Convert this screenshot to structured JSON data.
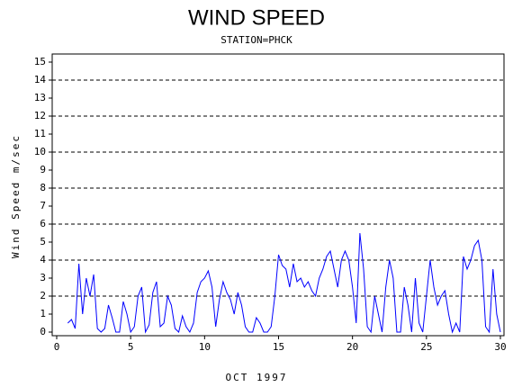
{
  "chart_data": {
    "type": "line",
    "title": "WIND SPEED",
    "subtitle": "STATION=PHCK",
    "x_label": "OCT 1997",
    "y_label": "Wind Speed m/sec",
    "xlim": [
      0,
      30
    ],
    "xticks": [
      0,
      5,
      10,
      15,
      20,
      25,
      30
    ],
    "ylim": [
      0,
      15
    ],
    "yticks": [
      0,
      1,
      2,
      3,
      4,
      5,
      6,
      7,
      8,
      9,
      10,
      11,
      12,
      13,
      14,
      15
    ],
    "grid_yticks": [
      2,
      4,
      6,
      8,
      10,
      12,
      14
    ],
    "x": [
      0.75,
      1,
      1.25,
      1.5,
      1.75,
      2,
      2.25,
      2.5,
      2.75,
      3,
      3.25,
      3.5,
      3.75,
      4,
      4.25,
      4.5,
      4.75,
      5,
      5.25,
      5.5,
      5.75,
      6,
      6.25,
      6.5,
      6.75,
      7,
      7.25,
      7.5,
      7.75,
      8,
      8.25,
      8.5,
      8.75,
      9,
      9.25,
      9.5,
      9.75,
      10,
      10.25,
      10.5,
      10.75,
      11,
      11.25,
      11.5,
      11.75,
      12,
      12.25,
      12.5,
      12.75,
      13,
      13.25,
      13.5,
      13.75,
      14,
      14.25,
      14.5,
      14.75,
      15,
      15.25,
      15.5,
      15.75,
      16,
      16.25,
      16.5,
      16.75,
      17,
      17.25,
      17.5,
      17.75,
      18,
      18.25,
      18.5,
      18.75,
      19,
      19.25,
      19.5,
      19.75,
      20,
      20.25,
      20.5,
      20.75,
      21,
      21.25,
      21.5,
      21.75,
      22,
      22.25,
      22.5,
      22.75,
      23,
      23.25,
      23.5,
      23.75,
      24,
      24.25,
      24.5,
      24.75,
      25,
      25.25,
      25.5,
      25.75,
      26,
      26.25,
      26.5,
      26.75,
      27,
      27.25,
      27.5,
      27.75,
      28,
      28.25,
      28.5,
      28.75,
      29,
      29.25,
      29.5,
      29.75,
      30
    ],
    "series": [
      {
        "name": "Wind Speed",
        "color": "#0000ff",
        "values": [
          0.5,
          0.7,
          0.2,
          3.8,
          1,
          3,
          2,
          3.2,
          0.2,
          0,
          0.2,
          1.5,
          0.8,
          0,
          0,
          1.7,
          1,
          0,
          0.3,
          2,
          2.5,
          0,
          0.4,
          2.2,
          2.8,
          0.3,
          0.5,
          2,
          1.5,
          0.2,
          0,
          0.9,
          0.3,
          0,
          0.5,
          2.2,
          2.8,
          3,
          3.4,
          2.5,
          0.3,
          1.8,
          2.8,
          2.2,
          1.8,
          1,
          2.2,
          1.5,
          0.3,
          0,
          0,
          0.8,
          0.5,
          0,
          0,
          0.3,
          2,
          4.3,
          3.7,
          3.5,
          2.5,
          3.8,
          2.8,
          3,
          2.5,
          2.8,
          2.3,
          2,
          3,
          3.5,
          4.2,
          4.5,
          3.5,
          2.5,
          4,
          4.5,
          4,
          2.5,
          0.5,
          5.5,
          3.5,
          0.3,
          0,
          2,
          1,
          0,
          2.5,
          4,
          3,
          0,
          0,
          2.5,
          1.5,
          0,
          3,
          0.5,
          0,
          2,
          4,
          2.5,
          1.5,
          2,
          2.3,
          1,
          0,
          0.5,
          0,
          4.2,
          3.5,
          4,
          4.8,
          5.1,
          4,
          0.3,
          0,
          3.5,
          1,
          0
        ]
      }
    ]
  }
}
